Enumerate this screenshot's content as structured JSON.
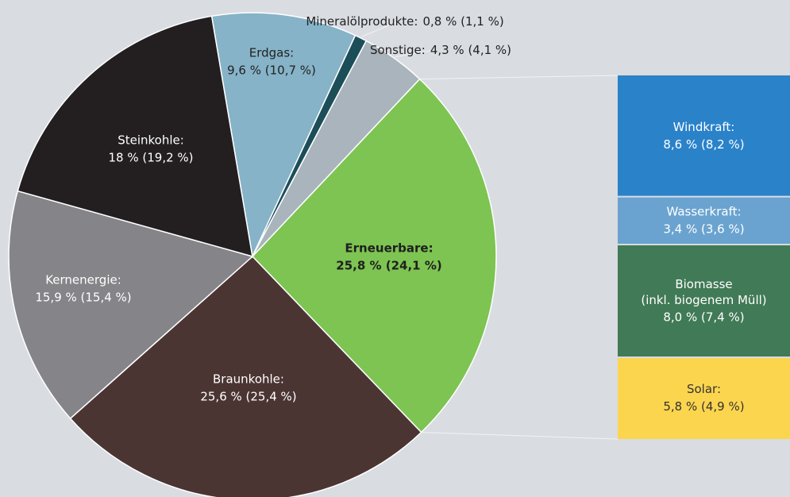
{
  "chart_data": [
    {
      "type": "pie",
      "categories": [
        "Erneuerbare:",
        "Braunkohle:",
        "Kernenergie:",
        "Steinkohle:",
        "Erdgas:",
        "Mineralölprodukte:",
        "Sonstige:"
      ],
      "values": [
        25.8,
        25.6,
        15.9,
        18,
        9.6,
        0.8,
        4.3
      ],
      "value_labels": [
        "25,8 % (24,1 %)",
        "25,6 % (25,4 %)",
        "15,9 % (15,4 %)",
        "18 % (19,2 %)",
        "9,6 % (10,7 %)",
        "0,8 % (1,1 %)",
        "4,3 % (4,1 %)"
      ],
      "colors": [
        "#7dc452",
        "#4b3533",
        "#858488",
        "#231f20",
        "#86b3c8",
        "#1c4e59",
        "#a9b4bc"
      ]
    },
    {
      "type": "bar",
      "categories": [
        "Windkraft:",
        "Wasserkraft:",
        "Biomasse\n(inkl. biogenem Müll)",
        "Solar:"
      ],
      "values": [
        8.6,
        3.4,
        8.0,
        5.8
      ],
      "value_labels": [
        "8,6 % (8,2 %)",
        "3,4 % (3,6 %)",
        "8,0 % (7,4 %)",
        "5,8 % (4,9 %)"
      ],
      "colors": [
        "#2a82c9",
        "#6aa3cf",
        "#417a56",
        "#fcd54e"
      ]
    }
  ]
}
